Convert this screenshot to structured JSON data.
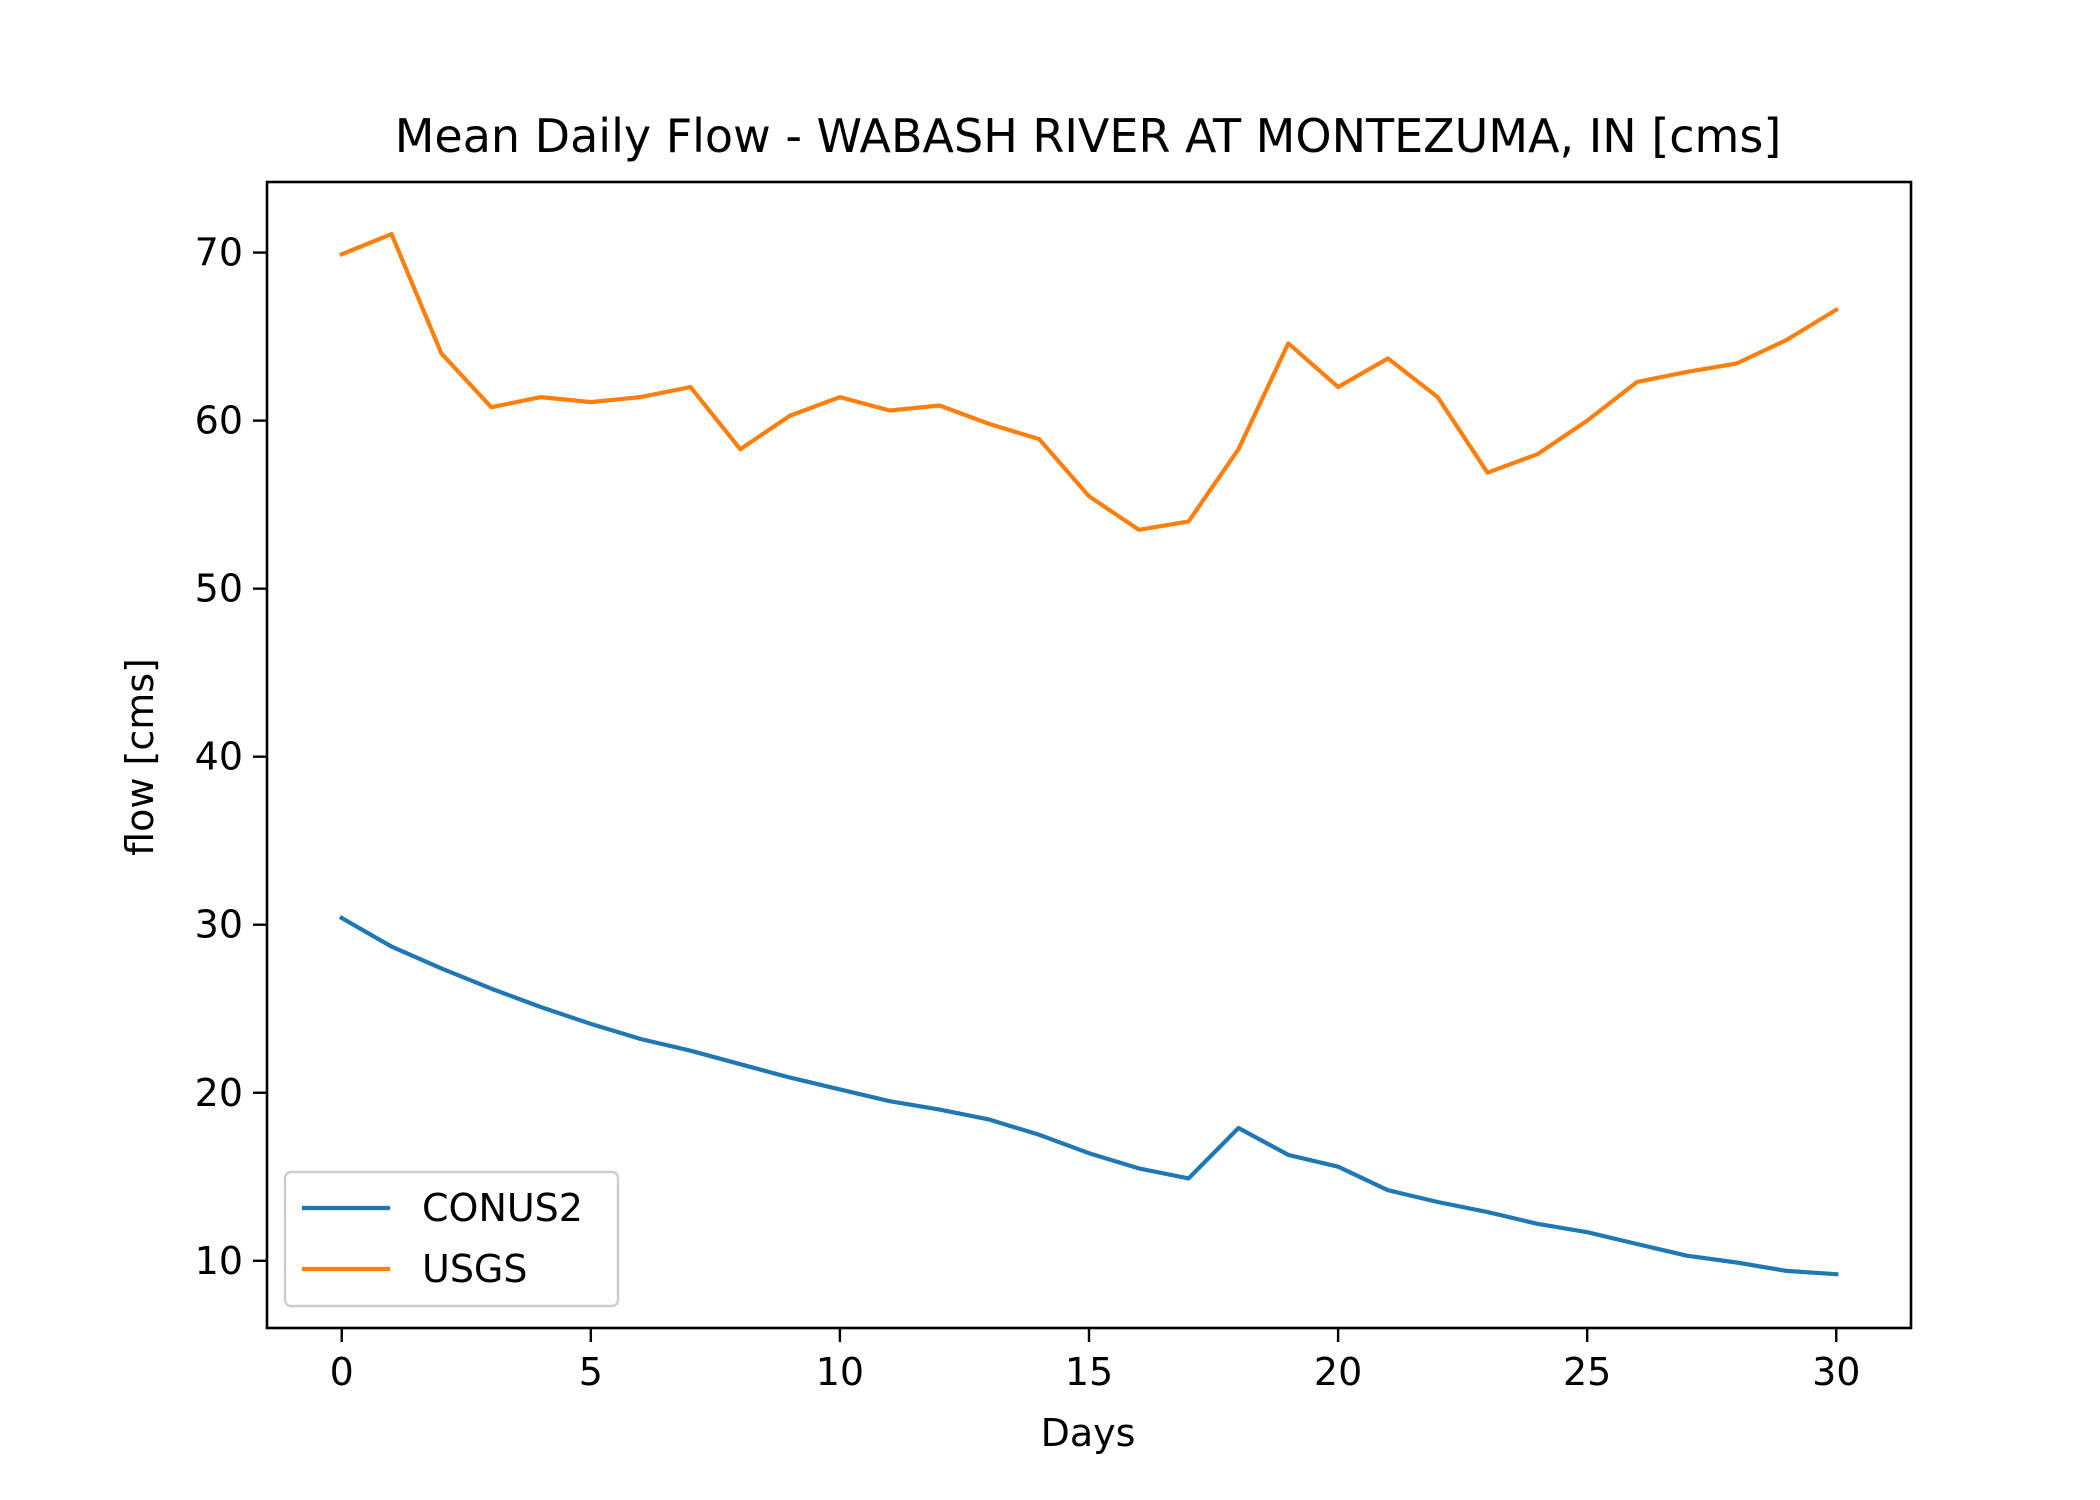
{
  "chart_data": {
    "type": "line",
    "title": "Mean Daily Flow - WABASH RIVER AT MONTEZUMA, IN [cms]",
    "xlabel": "Days",
    "ylabel": "flow [cms]",
    "xlim": [
      -1.5,
      31.5
    ],
    "ylim": [
      6.0,
      74.2
    ],
    "xticks": [
      0,
      5,
      10,
      15,
      20,
      25,
      30
    ],
    "yticks": [
      10,
      20,
      30,
      40,
      50,
      60,
      70
    ],
    "grid": false,
    "legend_position": "lower-left",
    "x": [
      0,
      1,
      2,
      3,
      4,
      5,
      6,
      7,
      8,
      9,
      10,
      11,
      12,
      13,
      14,
      15,
      16,
      17,
      18,
      19,
      20,
      21,
      22,
      23,
      24,
      25,
      26,
      27,
      28,
      29,
      30
    ],
    "series": [
      {
        "name": "CONUS2",
        "color": "#1f77b4",
        "values": [
          30.4,
          28.7,
          27.4,
          26.2,
          25.1,
          24.1,
          23.2,
          22.5,
          21.7,
          20.9,
          20.2,
          19.5,
          19.0,
          18.4,
          17.5,
          16.4,
          15.5,
          14.9,
          17.9,
          16.3,
          15.6,
          14.2,
          13.5,
          12.9,
          12.2,
          11.7,
          11.0,
          10.3,
          9.9,
          9.4,
          9.2
        ]
      },
      {
        "name": "USGS",
        "color": "#ff7f0e",
        "values": [
          69.9,
          71.1,
          64.0,
          60.8,
          61.4,
          61.1,
          61.4,
          62.0,
          58.3,
          60.3,
          61.4,
          60.6,
          60.9,
          59.8,
          58.9,
          55.5,
          53.5,
          54.0,
          58.3,
          64.6,
          62.0,
          63.7,
          61.4,
          56.9,
          58.0,
          60.0,
          62.3,
          62.9,
          63.4,
          64.8,
          66.6
        ]
      }
    ]
  }
}
